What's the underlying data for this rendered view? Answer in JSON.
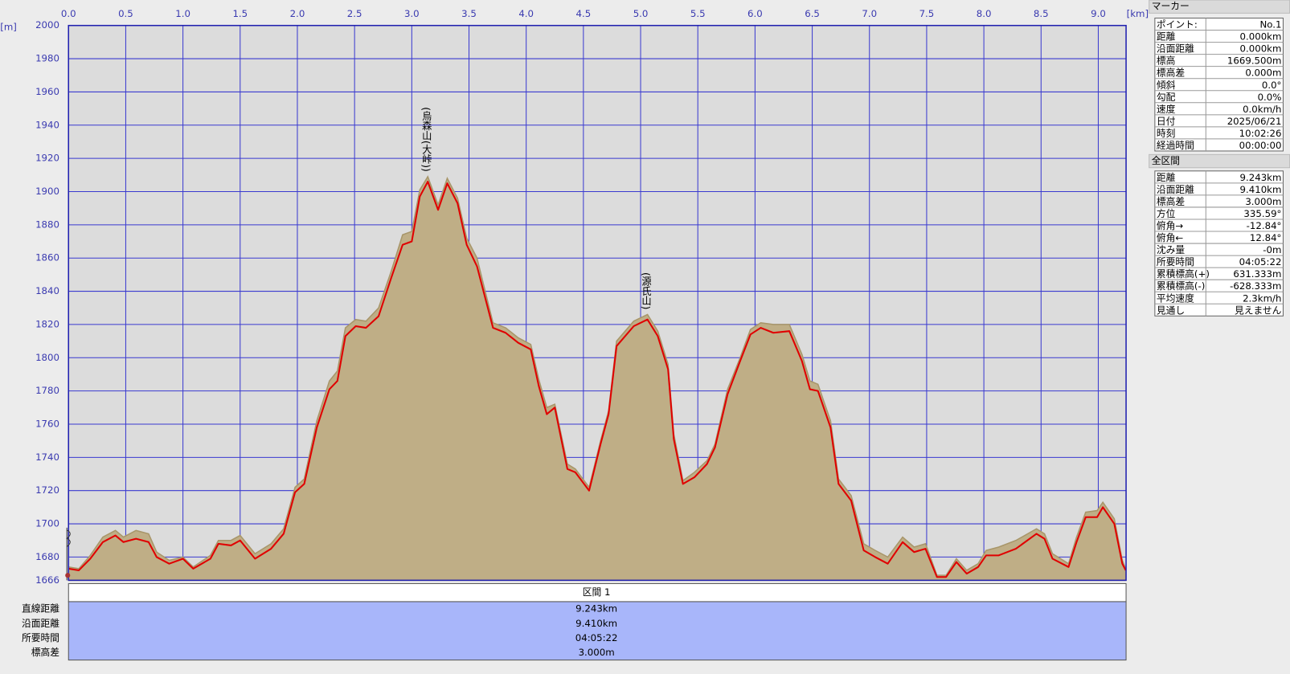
{
  "chart_data": {
    "type": "area-line",
    "x_unit": "[km]",
    "y_unit": "[m]",
    "x": [
      0,
      0.09,
      0.19,
      0.3,
      0.41,
      0.48,
      0.59,
      0.7,
      0.77,
      0.88,
      1.0,
      1.09,
      1.24,
      1.31,
      1.42,
      1.5,
      1.63,
      1.77,
      1.88,
      1.98,
      2.06,
      2.17,
      2.28,
      2.35,
      2.42,
      2.51,
      2.6,
      2.71,
      2.82,
      2.92,
      3.0,
      3.07,
      3.14,
      3.23,
      3.31,
      3.4,
      3.48,
      3.57,
      3.71,
      3.82,
      3.93,
      4.04,
      4.11,
      4.18,
      4.25,
      4.36,
      4.43,
      4.55,
      4.65,
      4.72,
      4.79,
      4.94,
      5.06,
      5.15,
      5.24,
      5.29,
      5.37,
      5.47,
      5.58,
      5.65,
      5.76,
      5.87,
      5.96,
      6.05,
      6.16,
      6.3,
      6.41,
      6.48,
      6.55,
      6.66,
      6.73,
      6.84,
      6.95,
      7.05,
      7.16,
      7.29,
      7.39,
      7.49,
      7.59,
      7.67,
      7.76,
      7.85,
      7.95,
      8.02,
      8.13,
      8.28,
      8.46,
      8.53,
      8.6,
      8.74,
      8.81,
      8.89,
      8.99,
      9.04,
      9.14,
      9.21,
      9.24
    ],
    "series": [
      {
        "color": "#bfae86",
        "stroke": "#a8966a",
        "values": [
          1674,
          1673,
          1681,
          1692,
          1696,
          1692,
          1696,
          1694,
          1683,
          1678,
          1680,
          1674,
          1681,
          1690,
          1690,
          1693,
          1682,
          1688,
          1697,
          1722,
          1727,
          1762,
          1786,
          1792,
          1818,
          1823,
          1822,
          1830,
          1852,
          1874,
          1876,
          1901,
          1909,
          1892,
          1908,
          1896,
          1872,
          1860,
          1821,
          1818,
          1812,
          1808,
          1787,
          1770,
          1772,
          1736,
          1733,
          1722,
          1750,
          1768,
          1810,
          1822,
          1826,
          1816,
          1796,
          1754,
          1726,
          1731,
          1738,
          1748,
          1781,
          1800,
          1817,
          1821,
          1820,
          1820,
          1802,
          1786,
          1784,
          1762,
          1727,
          1717,
          1688,
          1684,
          1680,
          1692,
          1686,
          1688,
          1669,
          1669,
          1679,
          1672,
          1676,
          1684,
          1686,
          1690,
          1697,
          1694,
          1682,
          1676,
          1692,
          1707,
          1708,
          1713,
          1703,
          1678,
          1673
        ]
      },
      {
        "color": "#e00000",
        "values": [
          1673,
          1672,
          1679,
          1689,
          1693,
          1689,
          1691,
          1689,
          1680,
          1676,
          1679,
          1673,
          1679,
          1688,
          1687,
          1690,
          1679,
          1685,
          1694,
          1719,
          1724,
          1758,
          1781,
          1786,
          1813,
          1819,
          1818,
          1825,
          1848,
          1868,
          1870,
          1897,
          1906,
          1889,
          1905,
          1893,
          1868,
          1855,
          1818,
          1815,
          1809,
          1805,
          1783,
          1766,
          1770,
          1733,
          1731,
          1720,
          1748,
          1766,
          1807,
          1819,
          1823,
          1813,
          1793,
          1751,
          1724,
          1728,
          1736,
          1746,
          1778,
          1798,
          1814,
          1818,
          1815,
          1816,
          1798,
          1781,
          1780,
          1758,
          1724,
          1714,
          1684,
          1680,
          1676,
          1689,
          1683,
          1685,
          1668,
          1668,
          1677,
          1670,
          1674,
          1681,
          1681,
          1685,
          1694,
          1691,
          1679,
          1674,
          1689,
          1704,
          1704,
          1710,
          1700,
          1676,
          1672
        ]
      }
    ],
    "xlim": [
      0,
      9.243
    ],
    "xticks": [
      {
        "value": 0,
        "label": "0.0"
      },
      0.5,
      {
        "value": 1,
        "label": "1.0"
      },
      1.5,
      {
        "value": 2,
        "label": "2.0"
      },
      2.5,
      {
        "value": 3,
        "label": "3.0"
      },
      3.5,
      {
        "value": 4,
        "label": "4.0"
      },
      4.5,
      {
        "value": 5,
        "label": "5.0"
      },
      5.5,
      {
        "value": 6,
        "label": "6.0"
      },
      6.5,
      {
        "value": 7,
        "label": "7.0"
      },
      7.5,
      {
        "value": 8,
        "label": "8.0"
      },
      8.5,
      {
        "value": 9,
        "label": "9.0"
      }
    ],
    "ylim": [
      1666,
      2000
    ],
    "yticks": [
      1666,
      1680,
      1700,
      1720,
      1740,
      1760,
      1780,
      1800,
      1820,
      1840,
      1860,
      1880,
      1900,
      1920,
      1940,
      1960,
      1980,
      2000
    ],
    "grid": true,
    "annotations": [
      {
        "text": "(烏森山(大峠))",
        "x": 3.14,
        "y": 1906
      },
      {
        "text": "(源氏山)",
        "x": 5.06,
        "y": 1823
      }
    ]
  },
  "section_table": {
    "header": "区間 1",
    "rows": [
      [
        "直線距離",
        "9.243km"
      ],
      [
        "沿面距離",
        "9.410km"
      ],
      [
        "所要時間",
        "04:05:22"
      ],
      [
        "標高差",
        "3.000m"
      ]
    ]
  },
  "marker_panel": {
    "title": "マーカー",
    "rows": [
      [
        "ポイント:",
        "No.1"
      ],
      [
        "距離",
        "0.000km"
      ],
      [
        "沿面距離",
        "0.000km"
      ],
      [
        "標高",
        "1669.500m"
      ],
      [
        "標高差",
        "0.000m"
      ],
      [
        "傾斜",
        "0.0°"
      ],
      [
        "勾配",
        "0.0%"
      ],
      [
        "速度",
        "0.0km/h"
      ],
      [
        "日付",
        "2025/06/21"
      ],
      [
        "時刻",
        "10:02:26"
      ],
      [
        "経過時間",
        "00:00:00"
      ]
    ]
  },
  "section_panel": {
    "title": "全区間",
    "rows": [
      [
        "距離",
        "9.243km"
      ],
      [
        "沿面距離",
        "9.410km"
      ],
      [
        "標高差",
        "3.000m"
      ],
      [
        "方位",
        "335.59°"
      ],
      [
        "俯角→",
        "-12.84°"
      ],
      [
        "俯角←",
        "12.84°"
      ],
      [
        "沈み量",
        "-0m"
      ],
      [
        "所要時間",
        "04:05:22"
      ],
      [
        "累積標高(+)",
        "631.333m"
      ],
      [
        "累積標高(-)",
        "-628.333m"
      ],
      [
        "平均速度",
        "2.3km/h"
      ],
      [
        "見通し",
        "見えません"
      ]
    ]
  }
}
